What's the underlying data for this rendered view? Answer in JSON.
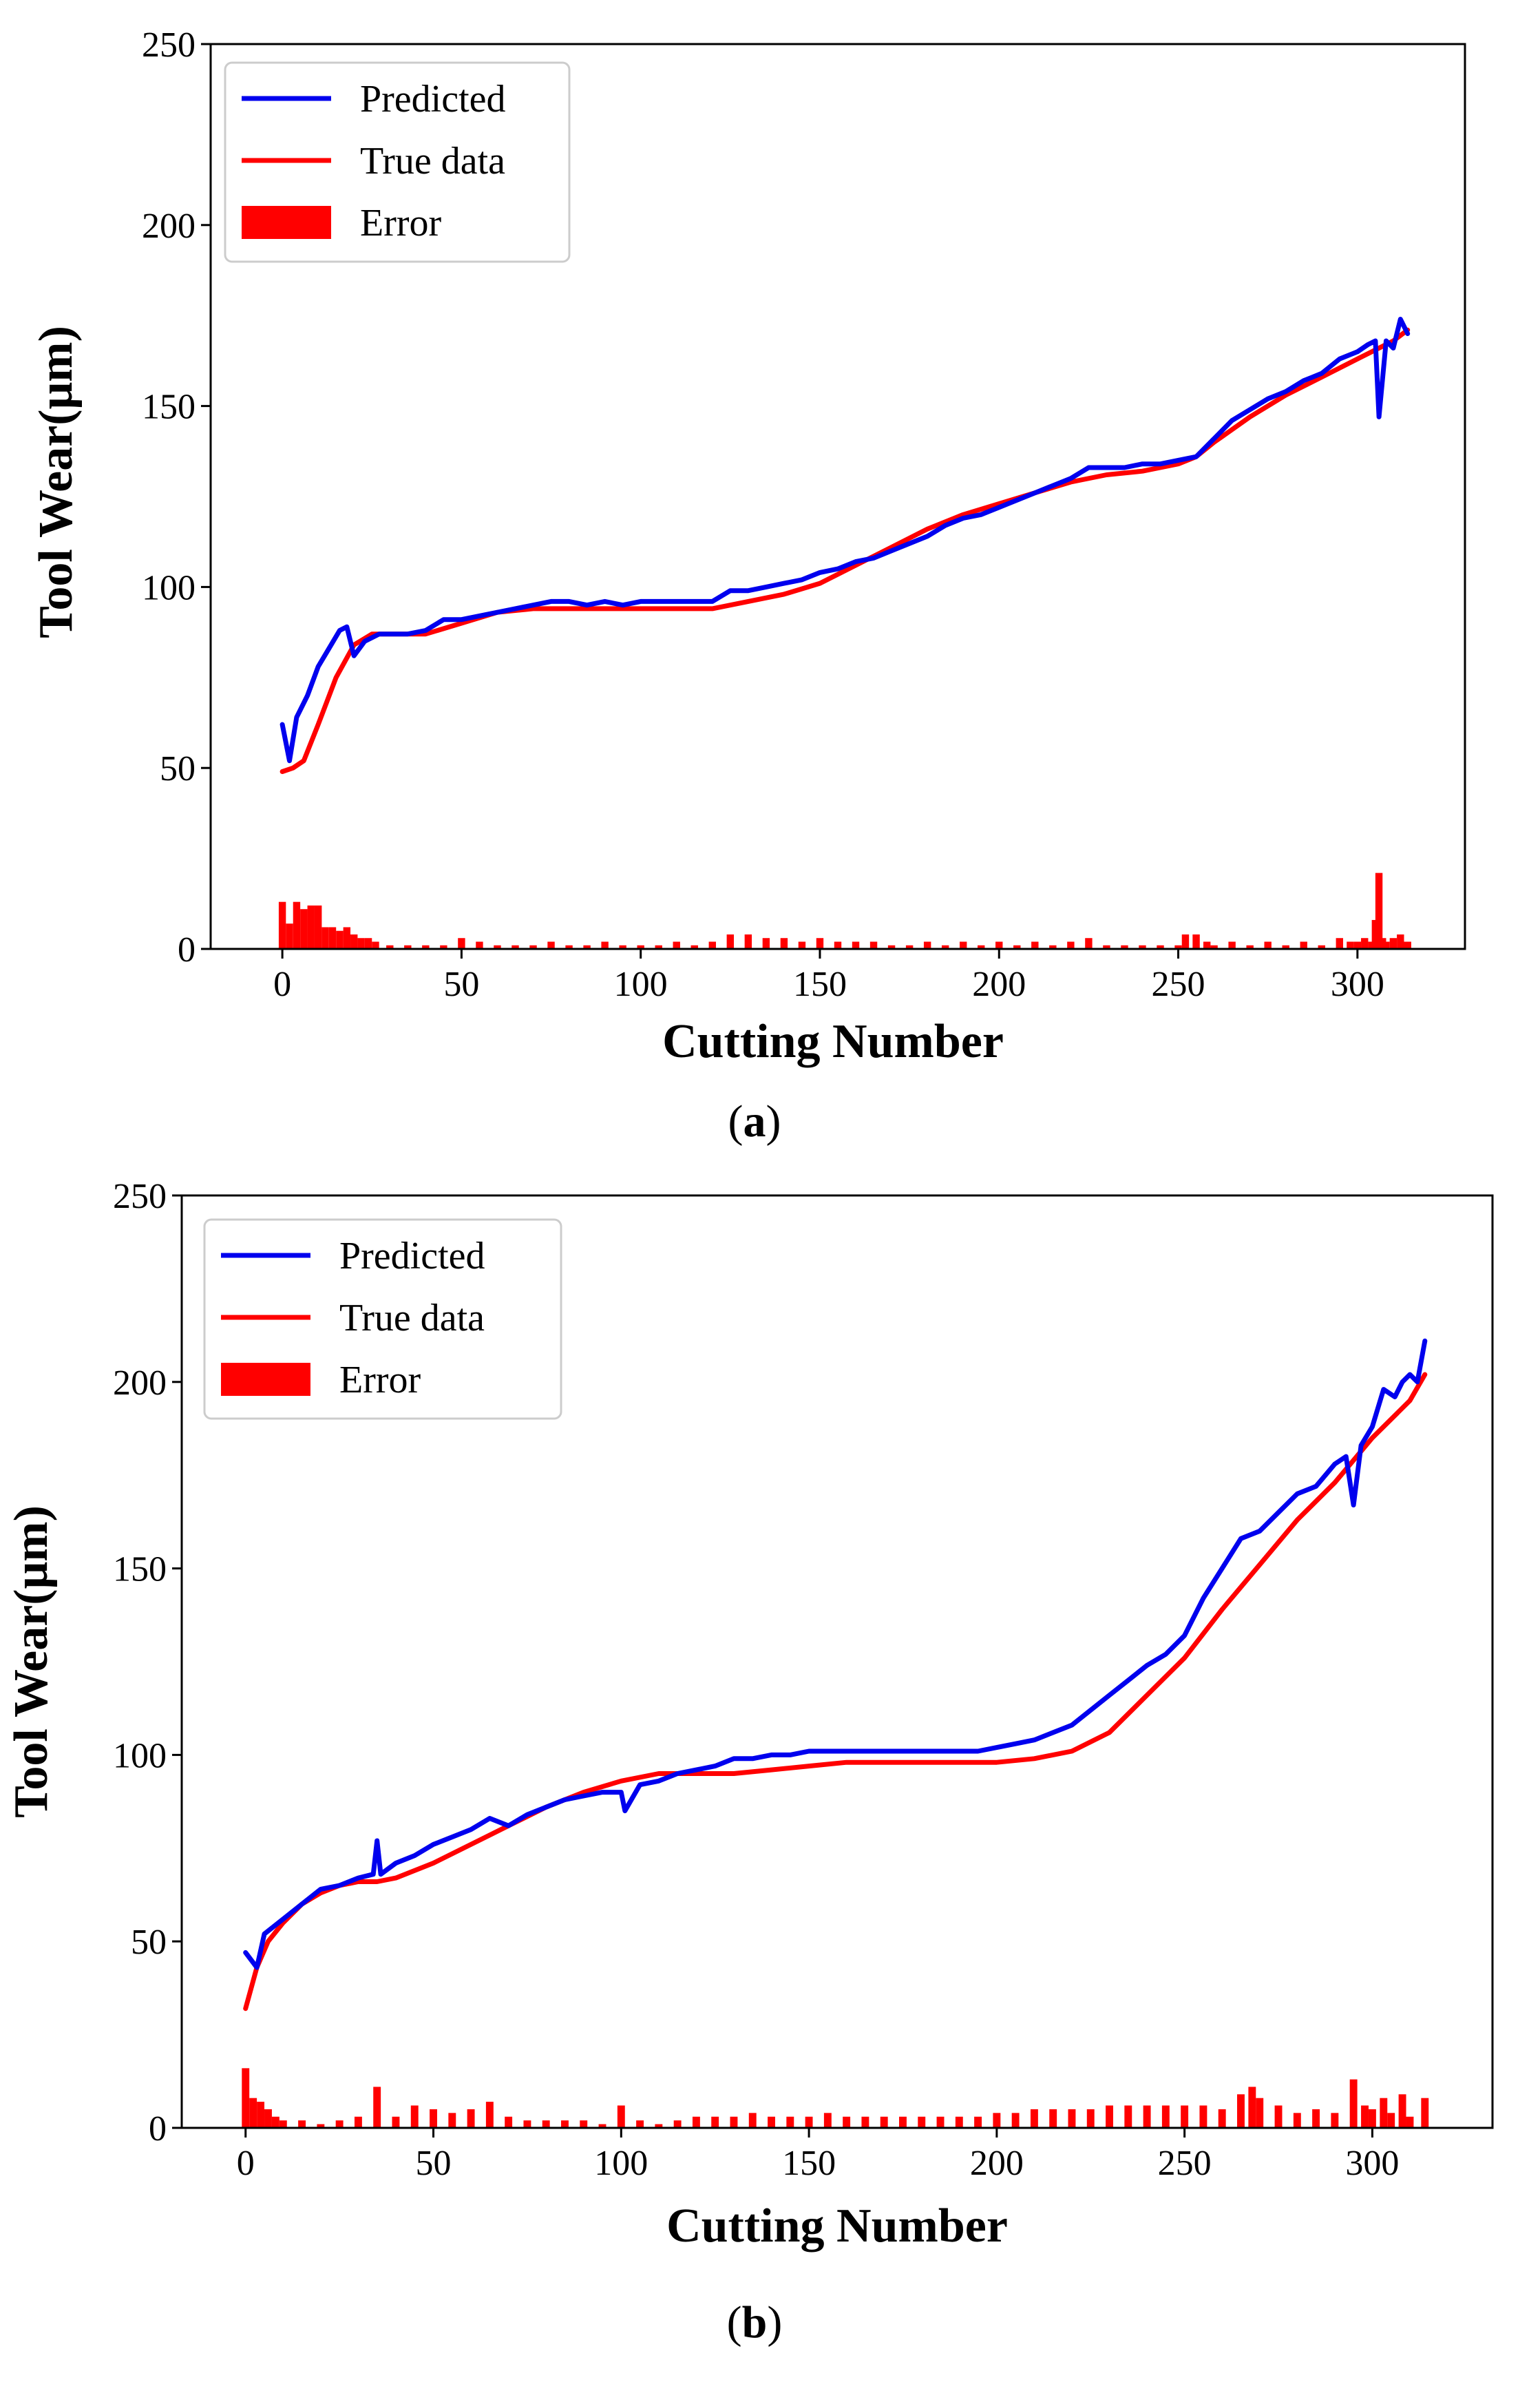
{
  "chart_data": [
    {
      "type": "line",
      "caption_letter": "a",
      "title": "",
      "xlabel": "Cutting Number",
      "ylabel": "Tool Wear(μm)",
      "xlim": [
        -20,
        330
      ],
      "ylim": [
        0,
        250
      ],
      "xticks": [
        0,
        50,
        100,
        150,
        200,
        250,
        300
      ],
      "yticks": [
        0,
        50,
        100,
        150,
        200,
        250
      ],
      "legend": {
        "position": "top-left",
        "entries": [
          "Predicted",
          "True data",
          "Error"
        ]
      },
      "series": [
        {
          "name": "Predicted",
          "color": "#0000ee",
          "kind": "line",
          "x": [
            0,
            2,
            4,
            7,
            10,
            13,
            16,
            18,
            20,
            23,
            27,
            30,
            35,
            40,
            45,
            50,
            55,
            60,
            65,
            70,
            75,
            80,
            85,
            90,
            95,
            100,
            105,
            110,
            115,
            120,
            125,
            130,
            135,
            140,
            145,
            150,
            155,
            160,
            165,
            170,
            175,
            180,
            185,
            190,
            195,
            200,
            205,
            210,
            215,
            220,
            225,
            230,
            235,
            240,
            245,
            250,
            255,
            260,
            265,
            270,
            275,
            280,
            285,
            290,
            295,
            300,
            303,
            305,
            306,
            308,
            310,
            312,
            314
          ],
          "y": [
            62,
            52,
            64,
            70,
            78,
            83,
            88,
            89,
            81,
            85,
            87,
            87,
            87,
            88,
            91,
            91,
            92,
            93,
            94,
            95,
            96,
            96,
            95,
            96,
            95,
            96,
            96,
            96,
            96,
            96,
            99,
            99,
            100,
            101,
            102,
            104,
            105,
            107,
            108,
            110,
            112,
            114,
            117,
            119,
            120,
            122,
            124,
            126,
            128,
            130,
            133,
            133,
            133,
            134,
            134,
            135,
            136,
            141,
            146,
            149,
            152,
            154,
            157,
            159,
            163,
            165,
            167,
            168,
            147,
            168,
            166,
            174,
            170
          ]
        },
        {
          "name": "True data",
          "color": "#ff0000",
          "kind": "line",
          "x": [
            0,
            3,
            6,
            10,
            15,
            20,
            25,
            30,
            40,
            50,
            60,
            70,
            80,
            90,
            100,
            110,
            120,
            130,
            140,
            150,
            160,
            170,
            180,
            190,
            200,
            210,
            220,
            230,
            240,
            250,
            255,
            260,
            270,
            280,
            290,
            300,
            310,
            314
          ],
          "y": [
            49,
            50,
            52,
            62,
            75,
            84,
            87,
            87,
            87,
            90,
            93,
            94,
            94,
            94,
            94,
            94,
            94,
            96,
            98,
            101,
            106,
            111,
            116,
            120,
            123,
            126,
            129,
            131,
            132,
            134,
            136,
            140,
            147,
            153,
            158,
            163,
            168,
            171
          ]
        },
        {
          "name": "Error",
          "color": "#ff0000",
          "kind": "bar",
          "x": [
            0,
            2,
            4,
            6,
            8,
            10,
            12,
            14,
            16,
            18,
            20,
            22,
            24,
            26,
            30,
            35,
            40,
            45,
            50,
            55,
            60,
            65,
            70,
            75,
            80,
            85,
            90,
            95,
            100,
            105,
            110,
            115,
            120,
            125,
            130,
            135,
            140,
            145,
            150,
            155,
            160,
            165,
            170,
            175,
            180,
            185,
            190,
            195,
            200,
            205,
            210,
            215,
            220,
            225,
            230,
            235,
            240,
            245,
            250,
            252,
            255,
            258,
            260,
            265,
            270,
            275,
            280,
            285,
            290,
            295,
            298,
            300,
            302,
            304,
            305,
            306,
            307,
            308,
            310,
            312,
            314
          ],
          "y": [
            13,
            7,
            13,
            11,
            12,
            12,
            6,
            6,
            5,
            6,
            4,
            3,
            3,
            2,
            1,
            1,
            1,
            1,
            3,
            2,
            1,
            1,
            1,
            2,
            1,
            1,
            2,
            1,
            1,
            1,
            2,
            1,
            2,
            4,
            4,
            3,
            3,
            2,
            3,
            2,
            2,
            2,
            1,
            1,
            2,
            1,
            2,
            1,
            2,
            1,
            2,
            1,
            2,
            3,
            1,
            1,
            1,
            1,
            1,
            4,
            4,
            2,
            1,
            2,
            1,
            2,
            1,
            2,
            1,
            3,
            2,
            2,
            3,
            2,
            8,
            21,
            3,
            2,
            3,
            4,
            2
          ]
        }
      ]
    },
    {
      "type": "line",
      "caption_letter": "b",
      "title": "",
      "xlabel": "Cutting Number",
      "ylabel": "Tool Wear(μm)",
      "xlim": [
        -17,
        332
      ],
      "ylim": [
        0,
        250
      ],
      "xticks": [
        0,
        50,
        100,
        150,
        200,
        250,
        300
      ],
      "yticks": [
        0,
        50,
        100,
        150,
        200,
        250
      ],
      "legend": {
        "position": "top-left",
        "entries": [
          "Predicted",
          "True data",
          "Error"
        ]
      },
      "series": [
        {
          "name": "Predicted",
          "color": "#0000ee",
          "kind": "line",
          "x": [
            0,
            3,
            5,
            10,
            15,
            20,
            25,
            30,
            34,
            35,
            36,
            40,
            45,
            50,
            55,
            60,
            65,
            70,
            75,
            80,
            85,
            90,
            95,
            100,
            101,
            105,
            110,
            115,
            120,
            125,
            130,
            135,
            140,
            145,
            150,
            155,
            160,
            165,
            170,
            175,
            180,
            185,
            190,
            195,
            200,
            205,
            210,
            215,
            220,
            225,
            230,
            235,
            240,
            245,
            250,
            255,
            260,
            265,
            270,
            275,
            280,
            285,
            290,
            293,
            295,
            297,
            300,
            303,
            306,
            308,
            310,
            312,
            314
          ],
          "y": [
            47,
            43,
            52,
            56,
            60,
            64,
            65,
            67,
            68,
            77,
            68,
            71,
            73,
            76,
            78,
            80,
            83,
            81,
            84,
            86,
            88,
            89,
            90,
            90,
            85,
            92,
            93,
            95,
            96,
            97,
            99,
            99,
            100,
            100,
            101,
            101,
            101,
            101,
            101,
            101,
            101,
            101,
            101,
            101,
            102,
            103,
            104,
            106,
            108,
            112,
            116,
            120,
            124,
            127,
            132,
            142,
            150,
            158,
            160,
            165,
            170,
            172,
            178,
            180,
            167,
            183,
            188,
            198,
            196,
            200,
            202,
            200,
            211
          ]
        },
        {
          "name": "True data",
          "color": "#ff0000",
          "kind": "line",
          "x": [
            0,
            3,
            6,
            10,
            15,
            20,
            25,
            30,
            35,
            40,
            50,
            60,
            70,
            80,
            90,
            100,
            110,
            120,
            130,
            140,
            150,
            160,
            170,
            180,
            190,
            200,
            210,
            220,
            230,
            240,
            250,
            260,
            270,
            280,
            290,
            300,
            310,
            314
          ],
          "y": [
            32,
            43,
            50,
            55,
            60,
            63,
            65,
            66,
            66,
            67,
            71,
            76,
            81,
            86,
            90,
            93,
            95,
            95,
            95,
            96,
            97,
            98,
            98,
            98,
            98,
            98,
            99,
            101,
            106,
            116,
            126,
            139,
            151,
            163,
            173,
            185,
            195,
            202
          ]
        },
        {
          "name": "Error",
          "color": "#ff0000",
          "kind": "bar",
          "x": [
            0,
            2,
            4,
            6,
            8,
            10,
            15,
            20,
            25,
            30,
            35,
            40,
            45,
            50,
            55,
            60,
            65,
            70,
            75,
            80,
            85,
            90,
            95,
            100,
            105,
            110,
            115,
            120,
            125,
            130,
            135,
            140,
            145,
            150,
            155,
            160,
            165,
            170,
            175,
            180,
            185,
            190,
            195,
            200,
            205,
            210,
            215,
            220,
            225,
            230,
            235,
            240,
            245,
            250,
            255,
            260,
            265,
            268,
            270,
            275,
            280,
            285,
            290,
            295,
            298,
            300,
            303,
            305,
            308,
            310,
            314
          ],
          "y": [
            16,
            8,
            7,
            5,
            3,
            2,
            2,
            1,
            2,
            3,
            11,
            3,
            6,
            5,
            4,
            5,
            7,
            3,
            2,
            2,
            2,
            2,
            1,
            6,
            2,
            1,
            2,
            3,
            3,
            3,
            4,
            3,
            3,
            3,
            4,
            3,
            3,
            3,
            3,
            3,
            3,
            3,
            3,
            4,
            4,
            5,
            5,
            5,
            5,
            6,
            6,
            6,
            6,
            6,
            6,
            5,
            9,
            11,
            8,
            6,
            4,
            5,
            4,
            13,
            6,
            5,
            8,
            4,
            9,
            3,
            8
          ]
        }
      ]
    }
  ]
}
